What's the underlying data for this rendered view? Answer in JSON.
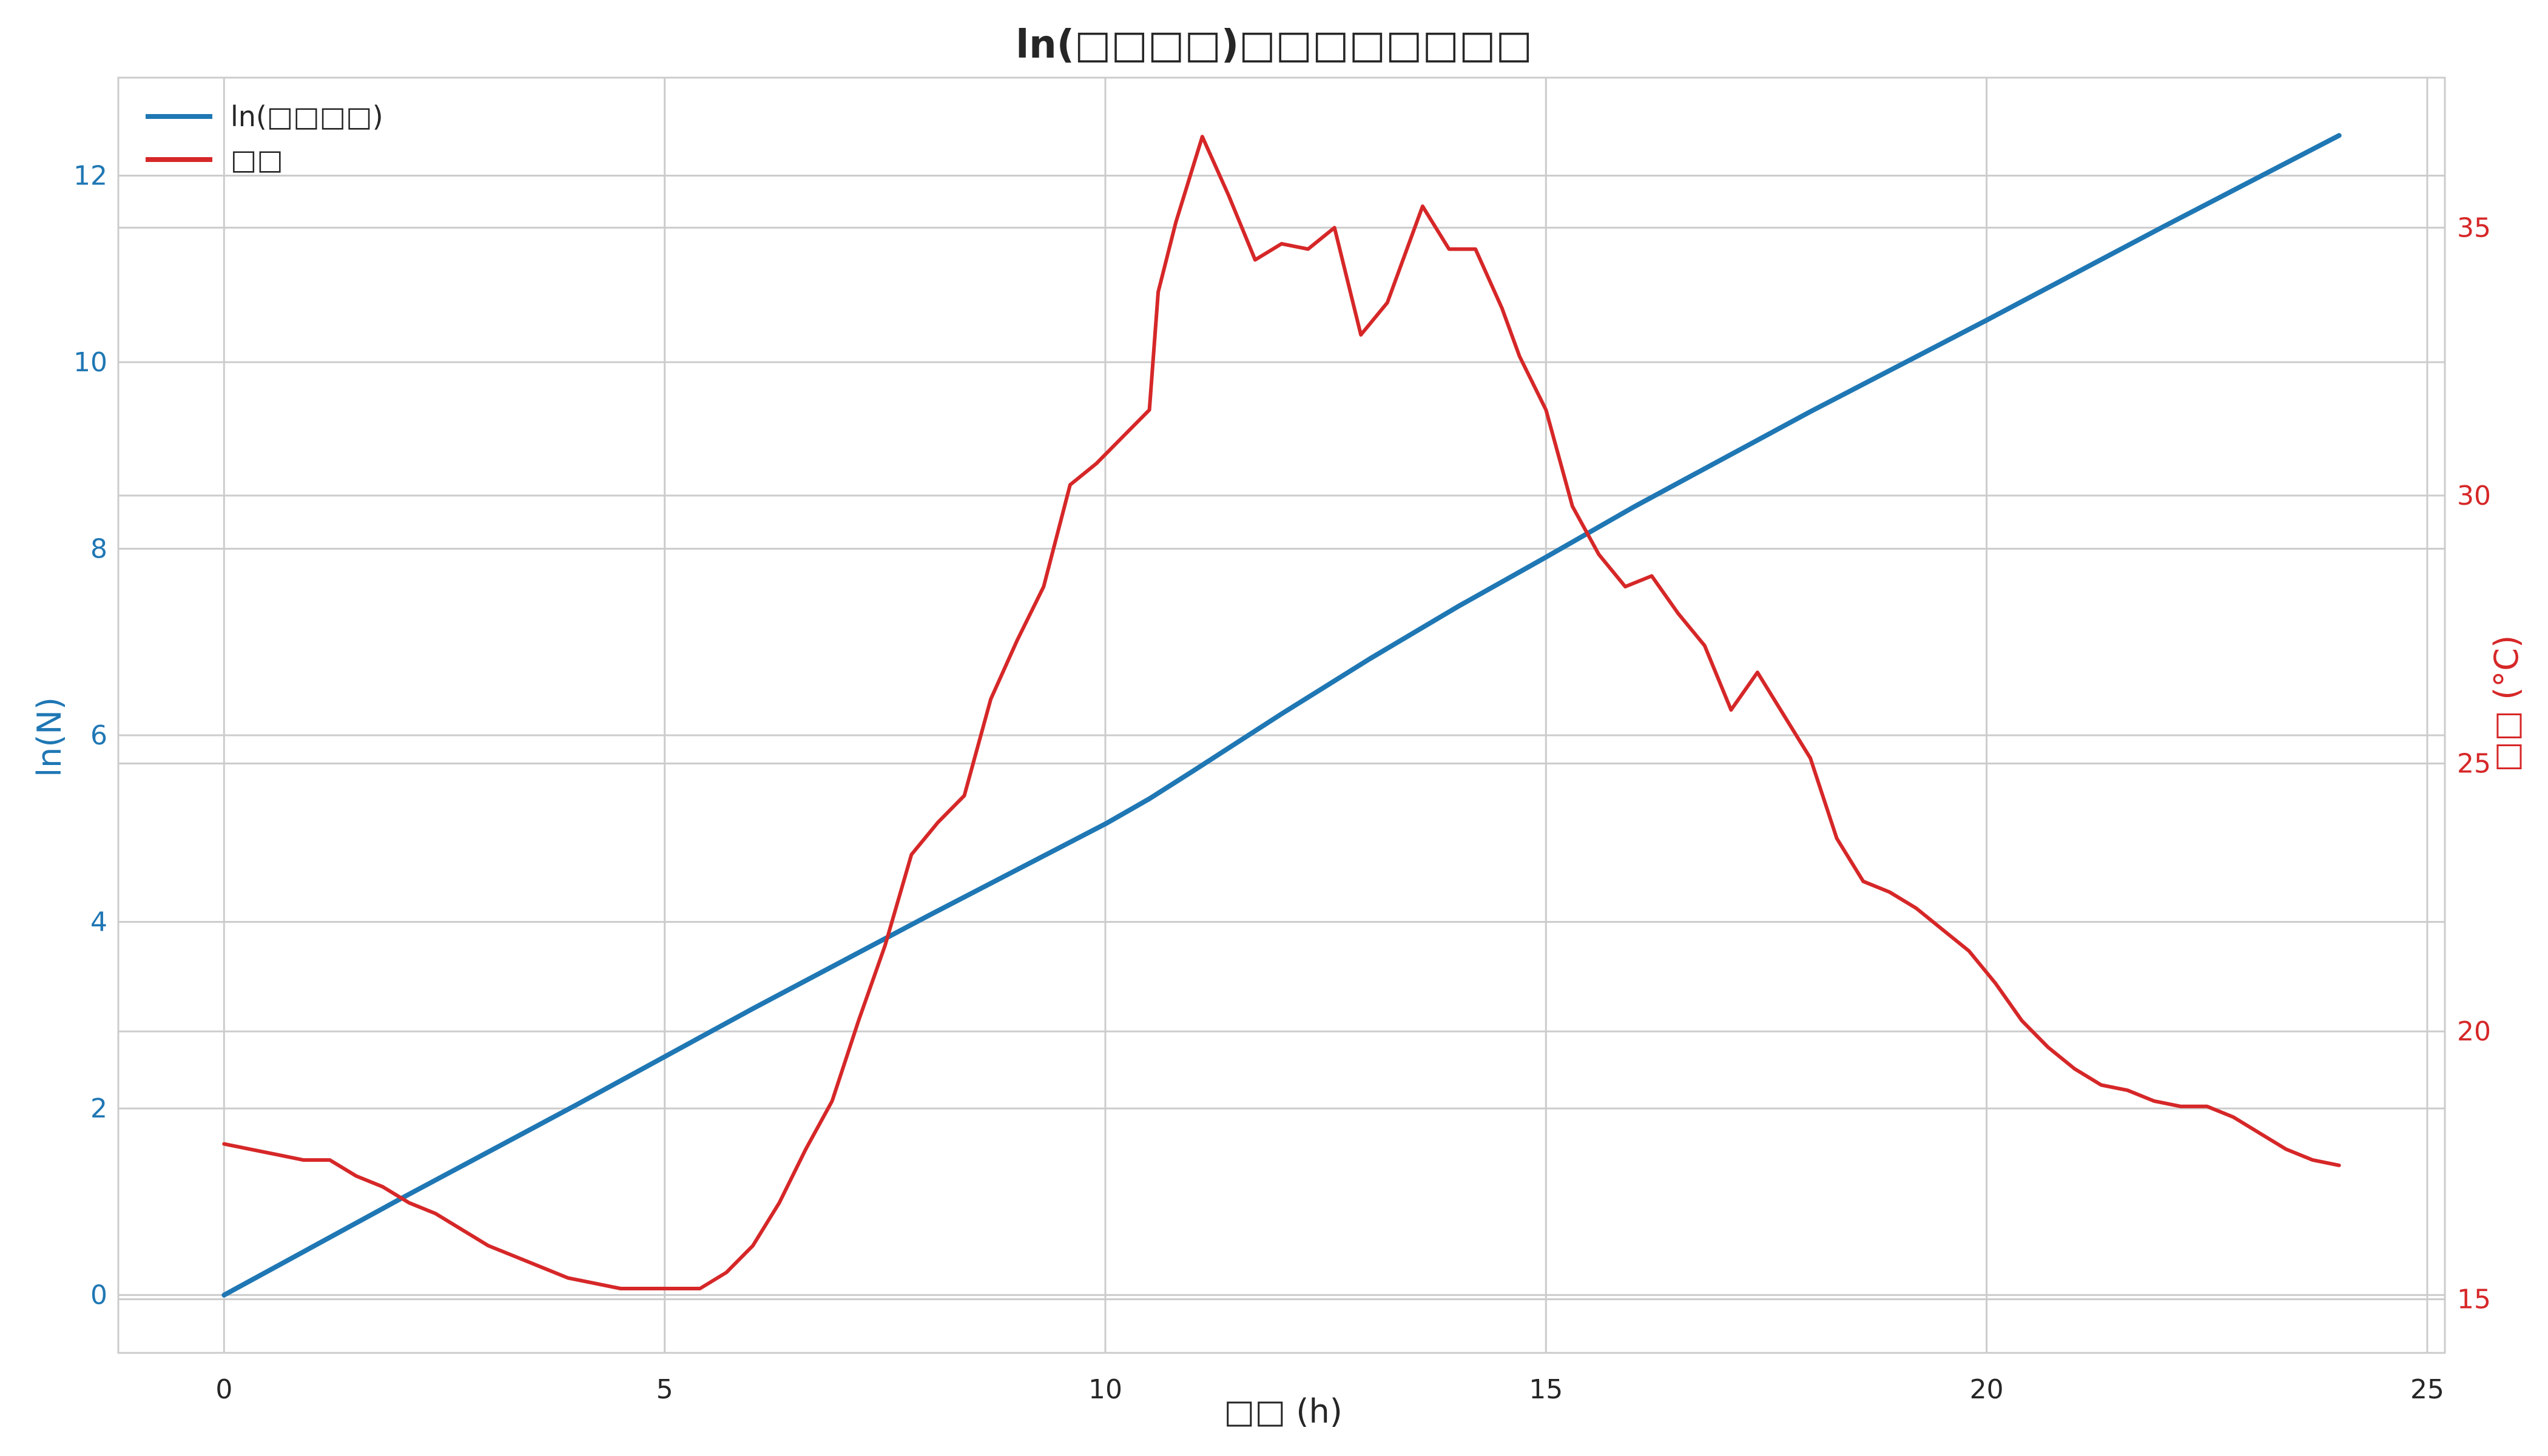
{
  "chart_data": {
    "type": "line",
    "title": "ln(□□□□)□□□□□□□□",
    "xlabel": "□□ (h)",
    "ylabel_left": "ln(N)",
    "ylabel_right": "□□ (°C)",
    "xlim": [
      -1.2,
      25.2
    ],
    "ylim_left": [
      -0.62,
      13.05
    ],
    "ylim_right": [
      14.0,
      37.8
    ],
    "x_ticks": [
      0,
      5,
      10,
      15,
      20,
      25
    ],
    "y_left_ticks": [
      0,
      2,
      4,
      6,
      8,
      10,
      12
    ],
    "y_right_ticks": [
      15,
      20,
      25,
      30,
      35
    ],
    "grid": true,
    "legend_position": "top-left",
    "colors": {
      "ln_series": "#1f77b4",
      "temp_series": "#d62728",
      "grid": "#cccccc",
      "text": "#262626"
    },
    "series": [
      {
        "name": "ln(□□□□)",
        "axis": "left",
        "x": [
          0,
          2,
          4,
          6,
          8,
          10,
          10.5,
          11,
          12,
          13,
          14,
          15,
          16,
          18,
          20,
          22,
          24
        ],
        "y": [
          0,
          1.03,
          2.04,
          3.07,
          4.07,
          5.05,
          5.32,
          5.62,
          6.23,
          6.82,
          7.38,
          7.91,
          8.45,
          9.47,
          10.45,
          11.45,
          12.43
        ]
      },
      {
        "name": "□□",
        "axis": "right",
        "x": [
          0,
          0.3,
          0.6,
          0.9,
          1.2,
          1.5,
          1.8,
          2.1,
          2.4,
          2.7,
          3.0,
          3.3,
          3.6,
          3.9,
          4.2,
          4.5,
          4.8,
          5.1,
          5.4,
          5.7,
          6.0,
          6.3,
          6.6,
          6.9,
          7.2,
          7.5,
          7.8,
          8.1,
          8.4,
          8.7,
          9.0,
          9.3,
          9.6,
          9.9,
          10.2,
          10.5,
          10.6,
          10.8,
          11.1,
          11.4,
          11.7,
          12.0,
          12.3,
          12.6,
          12.9,
          13.2,
          13.6,
          13.9,
          14.2,
          14.5,
          14.7,
          15.0,
          15.3,
          15.6,
          15.9,
          16.2,
          16.5,
          16.8,
          17.1,
          17.4,
          17.7,
          18.0,
          18.3,
          18.6,
          18.9,
          19.2,
          19.5,
          19.8,
          20.1,
          20.4,
          20.7,
          21.0,
          21.3,
          21.6,
          21.9,
          22.2,
          22.5,
          22.8,
          23.1,
          23.4,
          23.7,
          24.0
        ],
        "y": [
          17.9,
          17.8,
          17.7,
          17.6,
          17.6,
          17.3,
          17.1,
          16.8,
          16.6,
          16.3,
          16.0,
          15.8,
          15.6,
          15.4,
          15.3,
          15.2,
          15.2,
          15.2,
          15.2,
          15.5,
          16.0,
          16.8,
          17.8,
          18.7,
          20.2,
          21.6,
          23.3,
          23.9,
          24.4,
          26.2,
          27.3,
          28.3,
          30.2,
          30.6,
          31.1,
          31.6,
          33.8,
          35.1,
          36.7,
          35.6,
          34.4,
          34.7,
          34.6,
          35.0,
          33.0,
          33.6,
          35.4,
          34.6,
          34.6,
          33.5,
          32.6,
          31.6,
          29.8,
          28.9,
          28.3,
          28.5,
          27.8,
          27.2,
          26.0,
          26.7,
          25.9,
          25.1,
          23.6,
          22.8,
          22.6,
          22.3,
          21.9,
          21.5,
          20.9,
          20.2,
          19.7,
          19.3,
          19.0,
          18.9,
          18.7,
          18.6,
          18.6,
          18.4,
          18.1,
          17.8,
          17.6,
          17.5
        ]
      }
    ]
  }
}
